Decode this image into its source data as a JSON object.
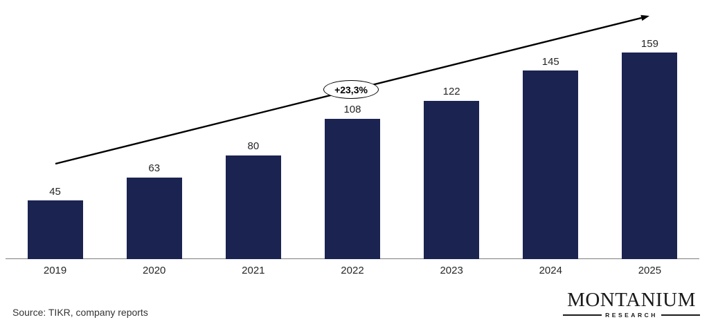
{
  "chart_data": {
    "type": "bar",
    "categories": [
      "2019",
      "2020",
      "2021",
      "2022",
      "2023",
      "2024",
      "2025"
    ],
    "values": [
      45,
      63,
      80,
      108,
      122,
      145,
      159
    ],
    "title": "",
    "xlabel": "",
    "ylabel": "",
    "ylim": [
      0,
      170
    ],
    "grid": false,
    "legend": "none",
    "data_labels": true,
    "bar_color": "#1b2351",
    "annotation": {
      "label": "+23,3%",
      "style": "ellipse-badge-on-trend-arrow"
    },
    "trend_arrow": "straight arrow rising left-to-right above bars"
  },
  "footer": {
    "source": "Source: TIKR, company reports"
  },
  "logo": {
    "brand": "MONTANIUM",
    "sub": "RESEARCH"
  }
}
